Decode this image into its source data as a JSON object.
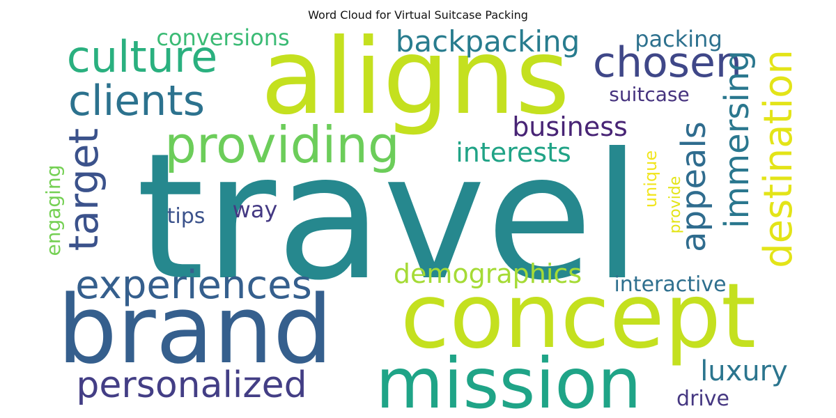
{
  "chart_data": {
    "type": "wordcloud",
    "title": "Word Cloud for Virtual Suitcase Packing",
    "words": [
      {
        "text": "travel",
        "color": "#26888e",
        "rot": 0
      },
      {
        "text": "aligns",
        "color": "#c4e01f",
        "rot": 0
      },
      {
        "text": "concept",
        "color": "#c4e01f",
        "rot": 0
      },
      {
        "text": "brand",
        "color": "#355f8d",
        "rot": 0
      },
      {
        "text": "mission",
        "color": "#1fa487",
        "rot": 0
      },
      {
        "text": "providing",
        "color": "#6ccd5a",
        "rot": 0
      },
      {
        "text": "personalized",
        "color": "#433e85",
        "rot": 0
      },
      {
        "text": "experiences",
        "color": "#355f8d",
        "rot": 0
      },
      {
        "text": "culture",
        "color": "#2ab07f",
        "rot": 0
      },
      {
        "text": "clients",
        "color": "#2c728e",
        "rot": 0
      },
      {
        "text": "chosen",
        "color": "#3f4788",
        "rot": 0
      },
      {
        "text": "target",
        "color": "#3b528b",
        "rot": -90
      },
      {
        "text": "destination",
        "color": "#e3e418",
        "rot": -90
      },
      {
        "text": "immersing",
        "color": "#2a778e",
        "rot": -90
      },
      {
        "text": "appeals",
        "color": "#2f6c8e",
        "rot": -90
      },
      {
        "text": "backpacking",
        "color": "#287c8e",
        "rot": 0
      },
      {
        "text": "conversions",
        "color": "#3bbb75",
        "rot": 0
      },
      {
        "text": "packing",
        "color": "#2d718e",
        "rot": 0
      },
      {
        "text": "business",
        "color": "#482475",
        "rot": 0
      },
      {
        "text": "interests",
        "color": "#20a386",
        "rot": 0
      },
      {
        "text": "demographics",
        "color": "#a5db36",
        "rot": 0
      },
      {
        "text": "interactive",
        "color": "#2e6f8e",
        "rot": 0
      },
      {
        "text": "luxury",
        "color": "#2b758e",
        "rot": 0
      },
      {
        "text": "drive",
        "color": "#453781",
        "rot": 0
      },
      {
        "text": "suitcase",
        "color": "#46337e",
        "rot": 0
      },
      {
        "text": "engaging",
        "color": "#75d054",
        "rot": -90
      },
      {
        "text": "tips",
        "color": "#3b528b",
        "rot": 0
      },
      {
        "text": "way",
        "color": "#443983",
        "rot": 0
      },
      {
        "text": "unique",
        "color": "#f1e51d",
        "rot": -90
      },
      {
        "text": "provide",
        "color": "#e3e418",
        "rot": -90
      }
    ]
  }
}
